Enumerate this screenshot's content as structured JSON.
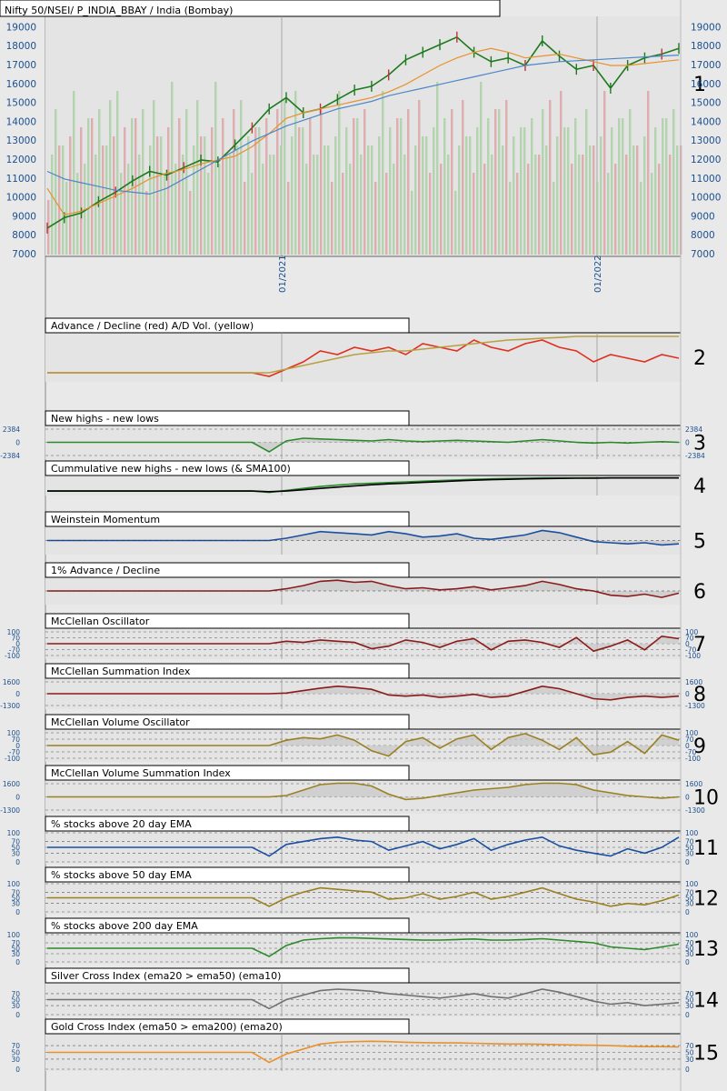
{
  "chart_data": {
    "type": "line",
    "panels": [
      {
        "id": "1",
        "title": "Nifty 50/NSEI/ P_INDIA_BBAY / India (Bombay)",
        "kind": "price",
        "yticks": [
          "19000",
          "18000",
          "17000",
          "16000",
          "15000",
          "14000",
          "13000",
          "12000",
          "11000",
          "10000",
          "9000",
          "8000",
          "7000"
        ],
        "ylim": [
          7000,
          19500
        ],
        "xticks": [
          "01/2021",
          "01/2022"
        ],
        "series": [
          {
            "color": "#1e7a1e",
            "values": [
              8400,
              8950,
              9200,
              9800,
              10300,
              10900,
              11400,
              11200,
              11600,
              12000,
              11900,
              12800,
              13700,
              14700,
              15300,
              14500,
              14700,
              15200,
              15700,
              15900,
              16500,
              17300,
              17700,
              18100,
              18500,
              17700,
              17200,
              17400,
              17000,
              18300,
              17500,
              16800,
              17000,
              15800,
              17000,
              17400,
              17600,
              17900
            ]
          },
          {
            "color": "#e8922c",
            "values": [
              10500,
              9100,
              9300,
              9700,
              10100,
              10500,
              11000,
              11300,
              11500,
              11800,
              12000,
              12200,
              12700,
              13400,
              14200,
              14500,
              14700,
              14900,
              15100,
              15300,
              15600,
              16000,
              16500,
              17000,
              17400,
              17700,
              17900,
              17700,
              17400,
              17500,
              17600,
              17400,
              17200,
              17000,
              17000,
              17100,
              17200,
              17300
            ]
          },
          {
            "color": "#4c86c8",
            "values": [
              11400,
              11000,
              10800,
              10600,
              10400,
              10300,
              10200,
              10500,
              11000,
              11500,
              12000,
              12500,
              13000,
              13400,
              13800,
              14100,
              14400,
              14700,
              14900,
              15100,
              15400,
              15600,
              15800,
              16000,
              16200,
              16400,
              16600,
              16800,
              17000,
              17100,
              17200,
              17250,
              17300,
              17350,
              17400,
              17450,
              17500,
              17550
            ]
          }
        ]
      },
      {
        "id": "2",
        "title": "Advance / Decline (red) A/D Vol. (yellow)",
        "kind": "line",
        "series": [
          {
            "color": "#e03020",
            "values": [
              0,
              0,
              0,
              0,
              0,
              0,
              0,
              0,
              0,
              0,
              0,
              0,
              0,
              -0.1,
              0.1,
              0.3,
              0.6,
              0.5,
              0.7,
              0.6,
              0.7,
              0.5,
              0.8,
              0.7,
              0.6,
              0.9,
              0.7,
              0.6,
              0.8,
              0.9,
              0.7,
              0.6,
              0.3,
              0.5,
              0.4,
              0.3,
              0.5,
              0.4
            ]
          },
          {
            "color": "#b8a040",
            "values": [
              0,
              0,
              0,
              0,
              0,
              0,
              0,
              0,
              0,
              0,
              0,
              0,
              0,
              0,
              0.1,
              0.2,
              0.3,
              0.4,
              0.5,
              0.55,
              0.6,
              0.6,
              0.65,
              0.7,
              0.75,
              0.8,
              0.85,
              0.9,
              0.92,
              0.95,
              0.97,
              1.0,
              1.0,
              1.0,
              1.0,
              1.0,
              1.0,
              1.0
            ]
          }
        ]
      },
      {
        "id": "3",
        "title": "New highs - new lows",
        "kind": "osc",
        "yticks": [
          "2384",
          "0",
          "-2384"
        ],
        "series": [
          {
            "color": "#2a8a2a",
            "values": [
              0,
              0,
              0,
              0,
              0,
              0,
              0,
              0,
              0,
              0,
              0,
              0,
              0,
              -0.7,
              0.1,
              0.3,
              0.25,
              0.2,
              0.15,
              0.1,
              0.2,
              0.1,
              0.05,
              0.1,
              0.15,
              0.1,
              0.05,
              0.0,
              0.1,
              0.2,
              0.1,
              0.0,
              -0.05,
              0.0,
              -0.05,
              0.0,
              0.05,
              0.0
            ]
          }
        ]
      },
      {
        "id": "4",
        "title": "Cummulative new highs - new lows (& SMA100)",
        "kind": "line",
        "series": [
          {
            "color": "#2a8a2a",
            "values": [
              0,
              0,
              0,
              0,
              0,
              0,
              0,
              0,
              0,
              0,
              0,
              0,
              0,
              -0.1,
              0.05,
              0.2,
              0.35,
              0.45,
              0.55,
              0.6,
              0.65,
              0.7,
              0.75,
              0.8,
              0.85,
              0.9,
              0.93,
              0.96,
              0.98,
              1.0,
              1.0,
              1.0,
              1.0,
              1.0,
              1.0,
              1.0,
              1.0,
              1.0
            ]
          },
          {
            "color": "#000000",
            "values": [
              0,
              0,
              0,
              0,
              0,
              0,
              0,
              0,
              0,
              0,
              0,
              0,
              0,
              -0.05,
              0,
              0.1,
              0.2,
              0.3,
              0.4,
              0.48,
              0.55,
              0.6,
              0.66,
              0.72,
              0.78,
              0.83,
              0.87,
              0.9,
              0.93,
              0.95,
              0.97,
              0.98,
              0.99,
              1.0,
              1.0,
              1.0,
              1.0,
              1.0
            ]
          }
        ]
      },
      {
        "id": "5",
        "title": "Weinstein Momentum",
        "kind": "area",
        "series": [
          {
            "color": "#1a4f9f",
            "values": [
              0,
              0,
              0,
              0,
              0,
              0,
              0,
              0,
              0,
              0,
              0,
              0,
              0,
              0,
              0.2,
              0.5,
              0.8,
              0.7,
              0.6,
              0.5,
              0.8,
              0.6,
              0.3,
              0.4,
              0.6,
              0.2,
              0.1,
              0.3,
              0.5,
              0.9,
              0.7,
              0.3,
              -0.1,
              -0.2,
              -0.3,
              -0.2,
              -0.4,
              -0.3
            ]
          }
        ]
      },
      {
        "id": "6",
        "title": "1% Advance / Decline",
        "kind": "area",
        "series": [
          {
            "color": "#8b1a1a",
            "values": [
              0,
              0,
              0,
              0,
              0,
              0,
              0,
              0,
              0,
              0,
              0,
              0,
              0,
              0,
              0.2,
              0.5,
              0.9,
              1.0,
              0.8,
              0.9,
              0.5,
              0.2,
              0.3,
              0.1,
              0.2,
              0.4,
              0.1,
              0.3,
              0.5,
              0.9,
              0.6,
              0.2,
              0,
              -0.4,
              -0.5,
              -0.3,
              -0.6,
              -0.2
            ]
          }
        ]
      },
      {
        "id": "7",
        "title": "McClellan Oscillator",
        "kind": "osc",
        "yticks": [
          "100",
          "70",
          "0",
          "-70",
          "-100"
        ],
        "series": [
          {
            "color": "#8b1a1a",
            "values": [
              0,
              0,
              0,
              0,
              0,
              0,
              0,
              0,
              0,
              0,
              0,
              0,
              0,
              0,
              0.2,
              0.1,
              0.3,
              0.2,
              0.1,
              -0.4,
              -0.2,
              0.3,
              0.1,
              -0.3,
              0.2,
              0.4,
              -0.5,
              0.2,
              0.3,
              0.1,
              -0.3,
              0.5,
              -0.6,
              -0.2,
              0.3,
              -0.5,
              0.6,
              0.4
            ]
          }
        ]
      },
      {
        "id": "8",
        "title": "McClellan Summation Index",
        "kind": "osc",
        "yticks": [
          "1600",
          "0",
          "-1300"
        ],
        "series": [
          {
            "color": "#8b1a1a",
            "values": [
              0,
              0,
              0,
              0,
              0,
              0,
              0,
              0,
              0,
              0,
              0,
              0,
              0,
              0,
              0.05,
              0.25,
              0.45,
              0.6,
              0.5,
              0.35,
              -0.1,
              -0.2,
              -0.1,
              -0.3,
              -0.2,
              -0.05,
              -0.3,
              -0.2,
              0.2,
              0.6,
              0.4,
              0,
              -0.4,
              -0.5,
              -0.3,
              -0.2,
              -0.3,
              -0.2
            ]
          }
        ]
      },
      {
        "id": "9",
        "title": "McClellan Volume Oscillator",
        "kind": "osc",
        "yticks": [
          "100",
          "70",
          "0",
          "-70",
          "-100"
        ],
        "series": [
          {
            "color": "#9a8020",
            "values": [
              0,
              0,
              0,
              0,
              0,
              0,
              0,
              0,
              0,
              0,
              0,
              0,
              0,
              0,
              0.4,
              0.6,
              0.5,
              0.8,
              0.4,
              -0.4,
              -0.8,
              0.3,
              0.6,
              -0.2,
              0.5,
              0.8,
              -0.3,
              0.6,
              0.9,
              0.4,
              -0.3,
              0.6,
              -0.7,
              -0.5,
              0.3,
              -0.6,
              0.8,
              0.4
            ]
          }
        ]
      },
      {
        "id": "10",
        "title": "McClellan Volume Summation Index",
        "kind": "osc",
        "yticks": [
          "1600",
          "0",
          "-1300"
        ],
        "series": [
          {
            "color": "#9a8020",
            "values": [
              0,
              0,
              0,
              0,
              0,
              0,
              0,
              0,
              0,
              0,
              0,
              0,
              0,
              0,
              0.1,
              0.5,
              0.9,
              1.0,
              1.0,
              0.8,
              0.2,
              -0.2,
              -0.1,
              0.1,
              0.3,
              0.5,
              0.6,
              0.7,
              0.9,
              1.0,
              1.0,
              0.9,
              0.5,
              0.3,
              0.1,
              0.0,
              -0.1,
              0.0
            ]
          }
        ]
      },
      {
        "id": "11",
        "title": "% stocks above 20 day EMA",
        "kind": "pct",
        "yticks": [
          "100",
          "70",
          "50",
          "30",
          "0"
        ],
        "series": [
          {
            "color": "#1a4f9f",
            "values": [
              50,
              50,
              50,
              50,
              50,
              50,
              50,
              50,
              50,
              50,
              50,
              50,
              50,
              20,
              60,
              70,
              80,
              85,
              75,
              70,
              40,
              55,
              70,
              45,
              60,
              80,
              40,
              60,
              75,
              85,
              55,
              40,
              30,
              20,
              45,
              30,
              50,
              85
            ]
          }
        ]
      },
      {
        "id": "12",
        "title": "% stocks above 50 day EMA",
        "kind": "pct",
        "yticks": [
          "100",
          "70",
          "50",
          "30",
          "0"
        ],
        "series": [
          {
            "color": "#9a8020",
            "values": [
              50,
              50,
              50,
              50,
              50,
              50,
              50,
              50,
              50,
              50,
              50,
              50,
              50,
              20,
              50,
              70,
              85,
              80,
              75,
              70,
              45,
              50,
              65,
              45,
              55,
              70,
              45,
              55,
              70,
              85,
              65,
              45,
              35,
              20,
              30,
              25,
              40,
              60
            ]
          }
        ]
      },
      {
        "id": "13",
        "title": "% stocks above 200 day EMA",
        "kind": "pct",
        "yticks": [
          "100",
          "70",
          "50",
          "30",
          "0"
        ],
        "series": [
          {
            "color": "#2a8a2a",
            "values": [
              50,
              50,
              50,
              50,
              50,
              50,
              50,
              50,
              50,
              50,
              50,
              50,
              50,
              20,
              60,
              80,
              85,
              88,
              88,
              86,
              84,
              82,
              80,
              80,
              82,
              84,
              80,
              80,
              82,
              85,
              80,
              75,
              70,
              55,
              50,
              45,
              55,
              65
            ]
          }
        ]
      },
      {
        "id": "14",
        "title": "Silver Cross Index (ema20 > ema50) (ema10)",
        "kind": "pct",
        "yticks": [
          "70",
          "50",
          "30",
          "0"
        ],
        "series": [
          {
            "color": "#707070",
            "values": [
              50,
              50,
              50,
              50,
              50,
              50,
              50,
              50,
              50,
              50,
              50,
              50,
              50,
              20,
              50,
              65,
              80,
              85,
              82,
              78,
              70,
              65,
              60,
              55,
              62,
              70,
              60,
              55,
              70,
              85,
              75,
              60,
              45,
              35,
              40,
              30,
              35,
              40
            ]
          }
        ]
      },
      {
        "id": "15",
        "title": "Gold Cross Index (ema50 > ema200) (ema20)",
        "kind": "pct",
        "yticks": [
          "70",
          "50",
          "30",
          "0"
        ],
        "series": [
          {
            "color": "#e8922c",
            "values": [
              50,
              50,
              50,
              50,
              50,
              50,
              50,
              50,
              50,
              50,
              50,
              50,
              50,
              20,
              45,
              60,
              75,
              80,
              82,
              83,
              82,
              80,
              79,
              78,
              78,
              77,
              76,
              75,
              75,
              74,
              73,
              72,
              71,
              70,
              68,
              67,
              67,
              66
            ]
          }
        ]
      }
    ]
  }
}
